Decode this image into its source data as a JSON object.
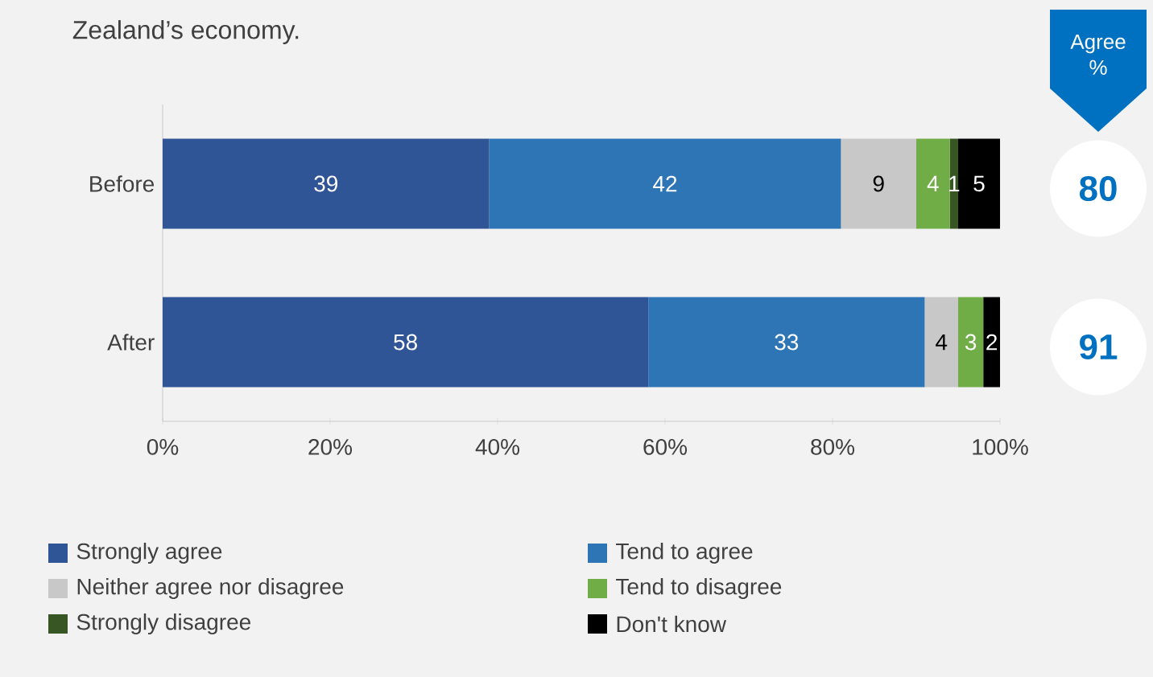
{
  "chart_data": {
    "type": "bar",
    "orientation": "horizontal",
    "stacked": true,
    "title": "Zealand’s economy.",
    "categories": [
      "Before",
      "After"
    ],
    "series": [
      {
        "name": "Strongly agree",
        "color": "#2f5597",
        "values": [
          39,
          58
        ],
        "value_labels": [
          "39",
          "58"
        ]
      },
      {
        "name": "Tend to agree",
        "color": "#2e75b6",
        "values": [
          42,
          33
        ],
        "value_labels": [
          "42",
          "33"
        ]
      },
      {
        "name": "Neither agree nor disagree",
        "color": "#c8c8c8",
        "values": [
          9,
          4
        ],
        "value_labels": [
          "9",
          "4"
        ]
      },
      {
        "name": "Tend to disagree",
        "color": "#70ad47",
        "values": [
          4,
          3
        ],
        "value_labels": [
          "4",
          "3"
        ]
      },
      {
        "name": "Strongly disagree",
        "color": "#375623",
        "values": [
          1,
          0
        ],
        "value_labels": [
          "1",
          null
        ]
      },
      {
        "name": "Don't know",
        "color": "#000000",
        "values": [
          5,
          2
        ],
        "value_labels": [
          "5",
          "2"
        ]
      }
    ],
    "xlim": [
      0,
      100
    ],
    "xticks": [
      {
        "value": 0,
        "label": "0%"
      },
      {
        "value": 20,
        "label": "20%"
      },
      {
        "value": 40,
        "label": "40%"
      },
      {
        "value": 60,
        "label": "60%"
      },
      {
        "value": 80,
        "label": "80%"
      },
      {
        "value": 100,
        "label": "100%"
      }
    ],
    "legend": "bottom",
    "annotations": [
      "Agree %",
      "80",
      "91"
    ]
  }
}
